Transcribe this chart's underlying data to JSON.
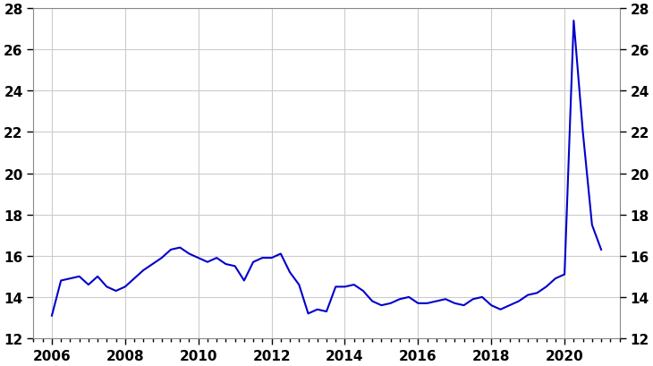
{
  "line_color": "#0000CC",
  "line_width": 1.5,
  "background_color": "#ffffff",
  "grid_color": "#cccccc",
  "ylim": [
    12,
    28
  ],
  "yticks": [
    12,
    14,
    16,
    18,
    20,
    22,
    24,
    26,
    28
  ],
  "xlim_start": 2005.5,
  "xlim_end": 2021.5,
  "xticks": [
    2006,
    2008,
    2010,
    2012,
    2014,
    2016,
    2018,
    2020
  ],
  "data": {
    "dates": [
      2006.0,
      2006.25,
      2006.5,
      2006.75,
      2007.0,
      2007.25,
      2007.5,
      2007.75,
      2008.0,
      2008.25,
      2008.5,
      2008.75,
      2009.0,
      2009.25,
      2009.5,
      2009.75,
      2010.0,
      2010.25,
      2010.5,
      2010.75,
      2011.0,
      2011.25,
      2011.5,
      2011.75,
      2012.0,
      2012.25,
      2012.5,
      2012.75,
      2013.0,
      2013.25,
      2013.5,
      2013.75,
      2014.0,
      2014.25,
      2014.5,
      2014.75,
      2015.0,
      2015.25,
      2015.5,
      2015.75,
      2016.0,
      2016.25,
      2016.5,
      2016.75,
      2017.0,
      2017.25,
      2017.5,
      2017.75,
      2018.0,
      2018.25,
      2018.5,
      2018.75,
      2019.0,
      2019.25,
      2019.5,
      2019.75,
      2020.0,
      2020.25,
      2020.5,
      2020.75,
      2021.0
    ],
    "values": [
      13.1,
      14.8,
      14.9,
      15.0,
      14.6,
      15.0,
      14.5,
      14.3,
      14.5,
      14.9,
      15.3,
      15.6,
      15.9,
      16.3,
      16.4,
      16.1,
      15.9,
      15.7,
      15.9,
      15.6,
      15.5,
      14.8,
      15.7,
      15.9,
      15.9,
      16.1,
      15.2,
      14.6,
      13.2,
      13.4,
      13.3,
      14.5,
      14.5,
      14.6,
      14.3,
      13.8,
      13.6,
      13.7,
      13.9,
      14.0,
      13.7,
      13.7,
      13.8,
      13.9,
      13.7,
      13.6,
      13.9,
      14.0,
      13.6,
      13.4,
      13.6,
      13.8,
      14.1,
      14.2,
      14.5,
      14.9,
      15.1,
      27.4,
      22.0,
      17.5,
      16.3
    ]
  }
}
